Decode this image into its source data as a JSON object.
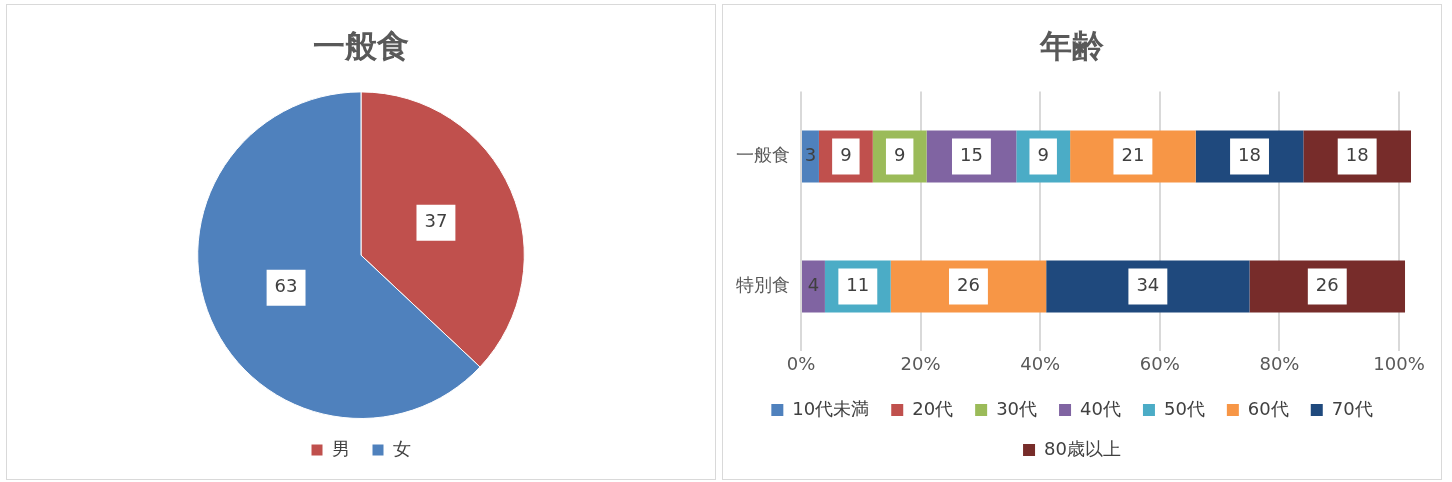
{
  "chart_data": [
    {
      "type": "pie",
      "title": "一般食",
      "categories": [
        "男",
        "女"
      ],
      "values": [
        37,
        63
      ],
      "colors": [
        "#c0504d",
        "#4f81bd"
      ],
      "data_labels": true,
      "legend": "bottom"
    },
    {
      "type": "bar",
      "title": "年齢",
      "orientation": "horizontal",
      "stacked": true,
      "categories": [
        "一般食",
        "特別食"
      ],
      "xlim": [
        0,
        102
      ],
      "xticks": [
        {
          "value": 0,
          "label": "0%"
        },
        {
          "value": 20,
          "label": "20%"
        },
        {
          "value": 40,
          "label": "40%"
        },
        {
          "value": 60,
          "label": "60%"
        },
        {
          "value": 80,
          "label": "80%"
        },
        {
          "value": 100,
          "label": "100%"
        }
      ],
      "grid": "x",
      "legend": "bottom",
      "series": [
        {
          "name": "10代未満",
          "color": "#4f81bd",
          "values": [
            3,
            0
          ],
          "value_labels": [
            "3",
            null
          ]
        },
        {
          "name": "20代",
          "color": "#c0504d",
          "values": [
            9,
            0
          ],
          "value_labels": [
            "9",
            null
          ]
        },
        {
          "name": "30代",
          "color": "#9bbb59",
          "values": [
            9,
            0
          ],
          "value_labels": [
            "9",
            null
          ]
        },
        {
          "name": "40代",
          "color": "#8064a2",
          "values": [
            15,
            4
          ],
          "value_labels": [
            "15",
            "4"
          ]
        },
        {
          "name": "50代",
          "color": "#4bacc6",
          "values": [
            9,
            11
          ],
          "value_labels": [
            "9",
            "11"
          ]
        },
        {
          "name": "60代",
          "color": "#f79646",
          "values": [
            21,
            26
          ],
          "value_labels": [
            "21",
            "26"
          ]
        },
        {
          "name": "70代",
          "color": "#1f497d",
          "values": [
            18,
            34
          ],
          "value_labels": [
            "18",
            "34"
          ]
        },
        {
          "name": "80歳以上",
          "color": "#772c2a",
          "values": [
            18,
            26
          ],
          "value_labels": [
            "18",
            "26"
          ]
        }
      ]
    }
  ]
}
